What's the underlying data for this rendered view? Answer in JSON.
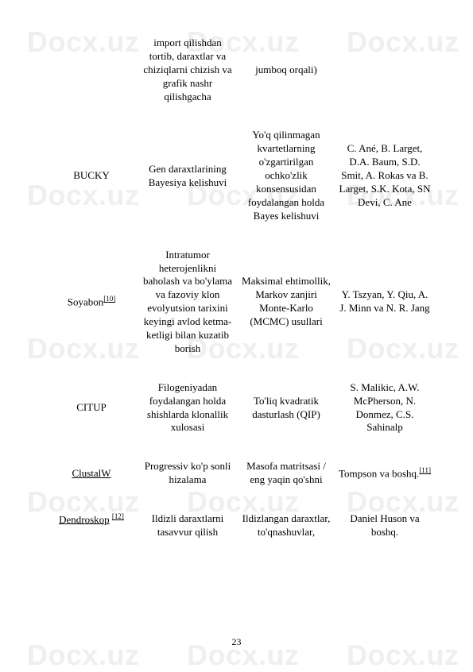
{
  "watermark_text": "Docx.uz",
  "watermark_color": "#efefef",
  "watermark_fontsize": 36,
  "text_color": "#000000",
  "body_fontsize": 13,
  "page_number": "23",
  "rows": [
    {
      "c1": "",
      "c2": "import qilishdan tortib, daraxtlar va chiziqlarni chizish va grafik nashr qilishgacha",
      "c3": "jumboq orqali)",
      "c4": ""
    },
    {
      "c1": "BUCKY",
      "c2": "Gen daraxtlarining Bayesiya kelishuvi",
      "c3": "Yo'q qilinmagan kvartetlarning o'zgartirilgan ochko'zlik konsensusidan foydalangan holda Bayes kelishuvi",
      "c4": "C. Ané, B. Larget, D.A. Baum, S.D. Smit, A. Rokas va B. Larget, S.K. Kota, SN Devi, C. Ane"
    },
    {
      "c1_text": "Soyabon",
      "c1_ref": "[10]",
      "c2": "Intratumor heterojenlikni baholash va bo'ylama va fazoviy klon evolyutsion tarixini keyingi avlod ketma-ketligi bilan kuzatib borish",
      "c3": "Maksimal ehtimollik, Markov zanjiri Monte-Karlo (MCMC) usullari",
      "c4": "Y. Tszyan, Y. Qiu, A. J. Minn va N. R. Jang"
    },
    {
      "c1": "CITUP",
      "c2": "Filogeniyadan foydalangan holda shishlarda klonallik xulosasi",
      "c3": "To'liq kvadratik dasturlash (QIP)",
      "c4": "S. Malikic, A.W. McPherson, N. Donmez, C.S. Sahinalp"
    },
    {
      "c1_text": "ClustalW",
      "c1_underline": true,
      "c2": "Progressiv ko'p sonli hizalama",
      "c3": "Masofa matritsasi / eng yaqin qo'shni",
      "c4_text": "Tompson va boshq.",
      "c4_ref": "[11]"
    },
    {
      "c1_text": "Dendroskop",
      "c1_underline": true,
      "c1_ref": "[12]",
      "c2": "Ildizli daraxtlarni tasavvur qilish",
      "c3": "Ildizlangan daraxtlar, to'qnashuvlar,",
      "c4": "Daniel Huson va boshq."
    }
  ]
}
